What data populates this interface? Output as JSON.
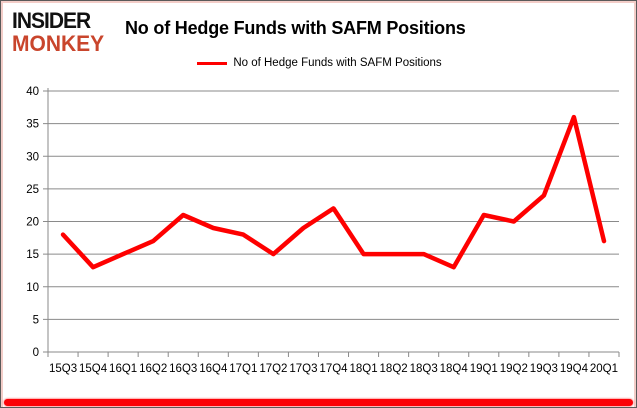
{
  "logo": {
    "line1": "INSIDER",
    "line2": "MONKEY"
  },
  "header": {
    "title": "No of Hedge Funds with SAFM Positions"
  },
  "legend": {
    "label": "No of Hedge Funds with SAFM Positions"
  },
  "colors": {
    "series_line": "#fe0000",
    "grid": "#8a8a8a",
    "axis": "#8a8a8a",
    "text": "#000000",
    "logo_black": "#111111",
    "logo_red": "#c9452c",
    "bottom_bar_red": "#fb0207"
  },
  "chart_data": {
    "type": "line",
    "title": "No of Hedge Funds with SAFM Positions",
    "categories": [
      "15Q3",
      "15Q4",
      "16Q1",
      "16Q2",
      "16Q3",
      "16Q4",
      "17Q1",
      "17Q2",
      "17Q3",
      "17Q4",
      "18Q1",
      "18Q2",
      "18Q3",
      "18Q4",
      "19Q1",
      "19Q2",
      "19Q3",
      "19Q4",
      "20Q1"
    ],
    "series": [
      {
        "name": "No of Hedge Funds with SAFM Positions",
        "color": "#fe0000",
        "values": [
          18,
          13,
          15,
          17,
          21,
          19,
          18,
          15,
          19,
          22,
          15,
          15,
          15,
          13,
          21,
          20,
          24,
          36,
          17
        ]
      }
    ],
    "xlabel": "",
    "ylabel": "",
    "ylim": [
      0,
      40
    ],
    "ytick_step": 5,
    "grid": true,
    "legend_position": "top-center"
  }
}
